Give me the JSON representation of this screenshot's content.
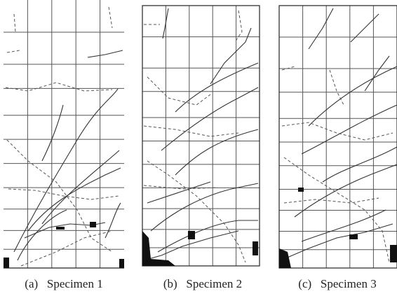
{
  "panels": [
    {
      "caption": "(a)   Specimen 1"
    },
    {
      "caption": "(b)   Specimen 2"
    },
    {
      "caption": "(c)   Specimen 3"
    }
  ]
}
